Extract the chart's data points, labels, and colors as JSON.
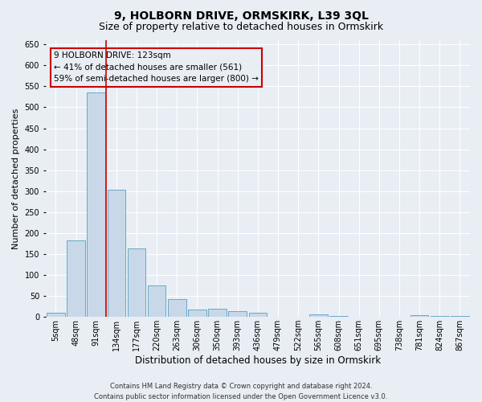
{
  "title": "9, HOLBORN DRIVE, ORMSKIRK, L39 3QL",
  "subtitle": "Size of property relative to detached houses in Ormskirk",
  "xlabel": "Distribution of detached houses by size in Ormskirk",
  "ylabel": "Number of detached properties",
  "bar_labels": [
    "5sqm",
    "48sqm",
    "91sqm",
    "134sqm",
    "177sqm",
    "220sqm",
    "263sqm",
    "306sqm",
    "350sqm",
    "393sqm",
    "436sqm",
    "479sqm",
    "522sqm",
    "565sqm",
    "608sqm",
    "651sqm",
    "695sqm",
    "738sqm",
    "781sqm",
    "824sqm",
    "867sqm"
  ],
  "bar_values": [
    10,
    183,
    535,
    303,
    163,
    75,
    42,
    17,
    20,
    14,
    9,
    0,
    0,
    6,
    2,
    0,
    0,
    0,
    5,
    2,
    3
  ],
  "bar_color": "#c8d8e8",
  "bar_edge_color": "#5a9fc0",
  "annotation_line1": "9 HOLBORN DRIVE: 123sqm",
  "annotation_line2": "← 41% of detached houses are smaller (561)",
  "annotation_line3": "59% of semi-detached houses are larger (800) →",
  "vline_color": "#cc0000",
  "vline_x": 2.5,
  "ylim": [
    0,
    660
  ],
  "yticks": [
    0,
    50,
    100,
    150,
    200,
    250,
    300,
    350,
    400,
    450,
    500,
    550,
    600,
    650
  ],
  "footer_line1": "Contains HM Land Registry data © Crown copyright and database right 2024.",
  "footer_line2": "Contains public sector information licensed under the Open Government Licence v3.0.",
  "bg_color": "#e8eef4",
  "grid_color": "#ffffff",
  "title_fontsize": 10,
  "subtitle_fontsize": 9,
  "tick_fontsize": 7,
  "ylabel_fontsize": 8,
  "xlabel_fontsize": 8.5,
  "annotation_fontsize": 7.5,
  "footer_fontsize": 6
}
